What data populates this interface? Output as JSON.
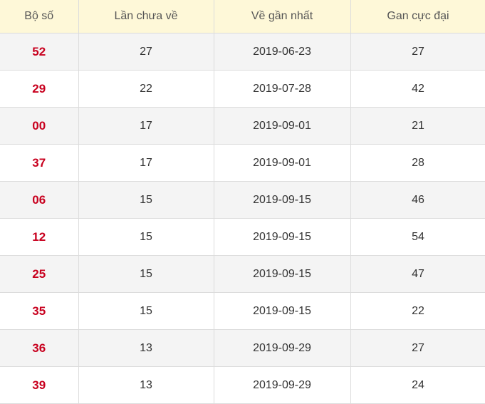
{
  "headers": [
    "Bộ số",
    "Lần chưa về",
    "Về gần nhất",
    "Gan cực đại"
  ],
  "rows": [
    [
      "52",
      "27",
      "2019-06-23",
      "27"
    ],
    [
      "29",
      "22",
      "2019-07-28",
      "42"
    ],
    [
      "00",
      "17",
      "2019-09-01",
      "21"
    ],
    [
      "37",
      "17",
      "2019-09-01",
      "28"
    ],
    [
      "06",
      "15",
      "2019-09-15",
      "46"
    ],
    [
      "12",
      "15",
      "2019-09-15",
      "54"
    ],
    [
      "25",
      "15",
      "2019-09-15",
      "47"
    ],
    [
      "35",
      "15",
      "2019-09-15",
      "22"
    ],
    [
      "36",
      "13",
      "2019-09-29",
      "27"
    ],
    [
      "39",
      "13",
      "2019-09-29",
      "24"
    ]
  ],
  "colors": {
    "number": "#c8001e",
    "header_bg": "#fef8d8"
  }
}
